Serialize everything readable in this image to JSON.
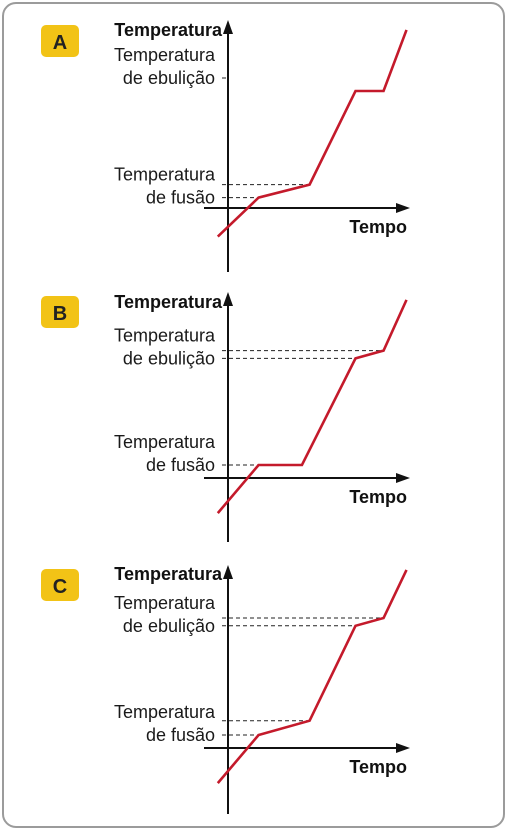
{
  "colors": {
    "curve": "#c41a2b",
    "badge": "#f2c316",
    "axis": "#111111",
    "border": "#9b9b9b"
  },
  "chart_data": [
    {
      "type": "line",
      "panel_label": "A",
      "ylabel": "Temperatura",
      "xlabel": "Tempo",
      "reference_lines": [
        {
          "label_lines": [
            "Temperatura",
            "de ebulição"
          ],
          "y": [
            100
          ]
        },
        {
          "label_lines": [
            "Temperatura",
            "de fusão"
          ],
          "y": [
            8,
            18
          ]
        }
      ],
      "x": [
        -0.4,
        1.2,
        3.2,
        5.0,
        6.1,
        7.0
      ],
      "y": [
        -22,
        8,
        18,
        90,
        90,
        137
      ]
    },
    {
      "type": "line",
      "panel_label": "B",
      "ylabel": "Temperatura",
      "xlabel": "Tempo",
      "reference_lines": [
        {
          "label_lines": [
            "Temperatura",
            "de ebulição"
          ],
          "y": [
            98,
            92
          ]
        },
        {
          "label_lines": [
            "Temperatura",
            "de fusão"
          ],
          "y": [
            10
          ]
        }
      ],
      "x": [
        -0.4,
        1.2,
        2.9,
        5.0,
        6.1,
        7.0
      ],
      "y": [
        -27,
        10,
        10,
        92,
        98,
        137
      ]
    },
    {
      "type": "line",
      "panel_label": "C",
      "ylabel": "Temperatura",
      "xlabel": "Tempo",
      "reference_lines": [
        {
          "label_lines": [
            "Temperatura",
            "de ebulição"
          ],
          "y": [
            100,
            94
          ]
        },
        {
          "label_lines": [
            "Temperatura",
            "de fusão"
          ],
          "y": [
            10,
            21
          ]
        }
      ],
      "x": [
        -0.4,
        1.2,
        3.2,
        5.0,
        6.1,
        7.0
      ],
      "y": [
        -27,
        10,
        21,
        94,
        100,
        137
      ]
    }
  ]
}
